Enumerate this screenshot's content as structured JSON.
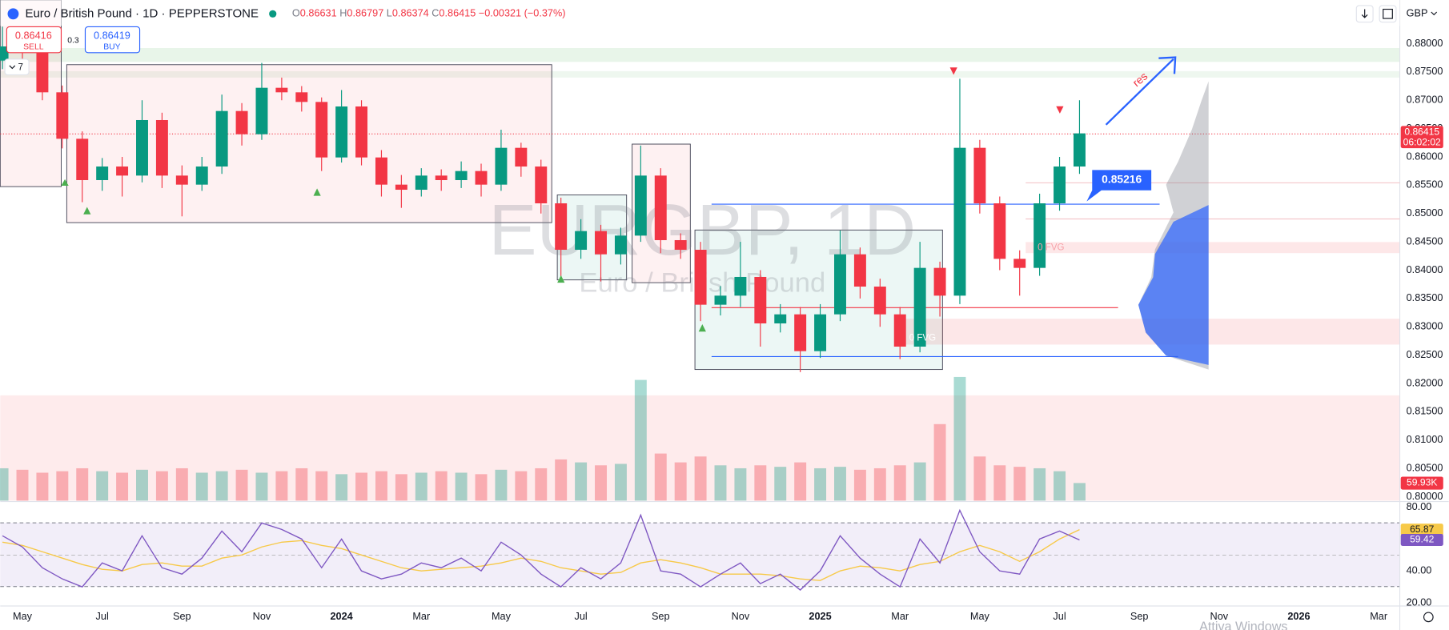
{
  "header": {
    "symbol": "Euro / British Pound · 1D · PEPPERSTONE",
    "ohlc": [
      {
        "label": "O",
        "value": "0.86631"
      },
      {
        "label": "H",
        "value": "0.86797"
      },
      {
        "label": "L",
        "value": "0.86374"
      },
      {
        "label": "C",
        "value": "0.86415"
      }
    ],
    "change": "−0.00321 (−0.37%)",
    "sell_price": "0.86416",
    "sell": "SELL",
    "spread": "0.3",
    "buy_price": "0.86419",
    "buy": "BUY",
    "interval_count": "7",
    "currency": "GBP"
  },
  "watermark": {
    "symbol": "EURGBP, 1D",
    "name": "Euro / British Pound"
  },
  "annotations": {
    "callout": "0.85216",
    "res": "res",
    "fvg_upper": "0 FVG",
    "fvg_lower": "0 FVG",
    "countdown": "06:02:02",
    "os_notice": "Attiva Windows"
  },
  "chart_data": {
    "type": "candlestick",
    "up_color": "#089981",
    "down_color": "#f23645",
    "x": [
      -0.5,
      0,
      0.5,
      1,
      1.5,
      2,
      2.5,
      3,
      3.5,
      4,
      4.5,
      5,
      5.5,
      6,
      6.5,
      7,
      7.5,
      8,
      8.5,
      9,
      9.5,
      10,
      10.5,
      11,
      11.5,
      12,
      12.5,
      13,
      13.5,
      14,
      14.5,
      15,
      15.5,
      16,
      16.5,
      17,
      17.5,
      18,
      18.5,
      19,
      19.5,
      20,
      20.5,
      21,
      21.5,
      22,
      22.5,
      23,
      23.5,
      24,
      24.5,
      25,
      25.5,
      26,
      26.5
    ],
    "open": [
      0.877,
      0.8795,
      0.8787,
      0.8714,
      0.8632,
      0.8559,
      0.8583,
      0.8567,
      0.8665,
      0.8567,
      0.8551,
      0.8583,
      0.8681,
      0.864,
      0.8722,
      0.8714,
      0.8697,
      0.8599,
      0.8689,
      0.8599,
      0.8551,
      0.8542,
      0.8567,
      0.8559,
      0.8575,
      0.8551,
      0.8616,
      0.8583,
      0.8518,
      0.8436,
      0.8469,
      0.8428,
      0.8461,
      0.8567,
      0.8453,
      0.8436,
      0.8339,
      0.8355,
      0.8388,
      0.8306,
      0.8322,
      0.8257,
      0.8322,
      0.8428,
      0.8371,
      0.8322,
      0.8265,
      0.8404,
      0.8355,
      0.8616,
      0.8518,
      0.842,
      0.8404,
      0.8518,
      0.8583
    ],
    "high": [
      0.883,
      0.8812,
      0.88,
      0.8726,
      0.8645,
      0.8598,
      0.86,
      0.87,
      0.8678,
      0.8585,
      0.86,
      0.871,
      0.8695,
      0.8766,
      0.874,
      0.8725,
      0.8705,
      0.8718,
      0.87,
      0.8612,
      0.8568,
      0.858,
      0.8578,
      0.8592,
      0.8588,
      0.8648,
      0.8625,
      0.8595,
      0.8528,
      0.849,
      0.848,
      0.8475,
      0.862,
      0.858,
      0.8465,
      0.845,
      0.8372,
      0.845,
      0.84,
      0.834,
      0.8335,
      0.834,
      0.847,
      0.844,
      0.8385,
      0.8335,
      0.845,
      0.8415,
      0.8738,
      0.863,
      0.853,
      0.8435,
      0.8535,
      0.86,
      0.87
    ],
    "low": [
      0.8755,
      0.877,
      0.87,
      0.8615,
      0.852,
      0.854,
      0.853,
      0.8555,
      0.8545,
      0.8495,
      0.854,
      0.857,
      0.862,
      0.863,
      0.87,
      0.868,
      0.8575,
      0.859,
      0.8585,
      0.853,
      0.851,
      0.853,
      0.854,
      0.8545,
      0.853,
      0.854,
      0.8565,
      0.85,
      0.838,
      0.842,
      0.838,
      0.841,
      0.845,
      0.843,
      0.842,
      0.831,
      0.832,
      0.8335,
      0.8265,
      0.829,
      0.822,
      0.8245,
      0.831,
      0.835,
      0.83,
      0.8243,
      0.8255,
      0.8318,
      0.834,
      0.85,
      0.84,
      0.8355,
      0.839,
      0.8505,
      0.857
    ],
    "close": [
      0.8795,
      0.8787,
      0.8714,
      0.8632,
      0.8559,
      0.8583,
      0.8567,
      0.8665,
      0.8567,
      0.8551,
      0.8583,
      0.8681,
      0.864,
      0.8722,
      0.8714,
      0.8697,
      0.8599,
      0.8689,
      0.8599,
      0.8551,
      0.8542,
      0.8567,
      0.8559,
      0.8575,
      0.8551,
      0.8616,
      0.8583,
      0.8518,
      0.8436,
      0.8469,
      0.8428,
      0.8461,
      0.8567,
      0.8453,
      0.8436,
      0.8339,
      0.8355,
      0.8388,
      0.8306,
      0.8322,
      0.8257,
      0.8322,
      0.8428,
      0.8371,
      0.8322,
      0.8265,
      0.8404,
      0.8355,
      0.8616,
      0.8518,
      0.842,
      0.8404,
      0.8518,
      0.8583,
      0.86415
    ],
    "xlim": [
      -0.556,
      34.46
    ],
    "xticks": [
      {
        "value": 0,
        "label": "May"
      },
      {
        "value": 2,
        "label": "Jul"
      },
      {
        "value": 4,
        "label": "Sep"
      },
      {
        "value": 6,
        "label": "Nov"
      },
      {
        "value": 8,
        "label": "2024"
      },
      {
        "value": 10,
        "label": "Mar"
      },
      {
        "value": 12,
        "label": "May"
      },
      {
        "value": 14,
        "label": "Jul"
      },
      {
        "value": 16,
        "label": "Sep"
      },
      {
        "value": 18,
        "label": "Nov"
      },
      {
        "value": 20,
        "label": "2025"
      },
      {
        "value": 22,
        "label": "Mar"
      },
      {
        "value": 24,
        "label": "May"
      },
      {
        "value": 26,
        "label": "Jul"
      },
      {
        "value": 28,
        "label": "Sep"
      },
      {
        "value": 30,
        "label": "Nov"
      },
      {
        "value": 32,
        "label": "2026"
      },
      {
        "value": 34,
        "label": "Mar"
      }
    ],
    "ylim": [
      0.7993,
      0.8877
    ],
    "yticks": [
      {
        "value": 0.8,
        "label": "0.80000"
      },
      {
        "value": 0.805,
        "label": "0.80500"
      },
      {
        "value": 0.81,
        "label": "0.81000"
      },
      {
        "value": 0.815,
        "label": "0.81500"
      },
      {
        "value": 0.82,
        "label": "0.82000"
      },
      {
        "value": 0.825,
        "label": "0.82500"
      },
      {
        "value": 0.83,
        "label": "0.83000"
      },
      {
        "value": 0.835,
        "label": "0.83500"
      },
      {
        "value": 0.84,
        "label": "0.84000"
      },
      {
        "value": 0.845,
        "label": "0.84500"
      },
      {
        "value": 0.85,
        "label": "0.85000"
      },
      {
        "value": 0.855,
        "label": "0.85500"
      },
      {
        "value": 0.86,
        "label": "0.86000"
      },
      {
        "value": 0.865,
        "label": "0.86500"
      },
      {
        "value": 0.87,
        "label": "0.87000"
      },
      {
        "value": 0.875,
        "label": "0.87500"
      },
      {
        "value": 0.88,
        "label": "0.88000"
      }
    ],
    "grid": false,
    "volume": {
      "values": [
        110,
        105,
        95,
        100,
        110,
        100,
        95,
        105,
        100,
        110,
        95,
        100,
        105,
        95,
        100,
        110,
        100,
        90,
        95,
        100,
        90,
        95,
        100,
        95,
        90,
        105,
        100,
        110,
        140,
        130,
        120,
        125,
        410,
        160,
        130,
        150,
        120,
        110,
        120,
        115,
        130,
        110,
        115,
        105,
        110,
        120,
        130,
        260,
        420,
        150,
        120,
        115,
        110,
        100,
        59.93
      ],
      "last_label": "59.93K",
      "ylim": [
        0,
        1700
      ]
    },
    "rsi": {
      "values": [
        62,
        55,
        42,
        35,
        30,
        45,
        40,
        62,
        42,
        38,
        48,
        65,
        52,
        70,
        66,
        60,
        42,
        60,
        40,
        35,
        38,
        45,
        42,
        48,
        40,
        58,
        50,
        38,
        30,
        42,
        35,
        45,
        75,
        40,
        38,
        30,
        38,
        45,
        32,
        38,
        28,
        40,
        62,
        48,
        38,
        30,
        60,
        45,
        78,
        52,
        40,
        38,
        60,
        65,
        59.42
      ],
      "ma": [
        58,
        56,
        52,
        48,
        44,
        41,
        40,
        44,
        45,
        43,
        43,
        48,
        50,
        55,
        58,
        59,
        56,
        54,
        50,
        46,
        42,
        40,
        41,
        42,
        43,
        45,
        48,
        46,
        42,
        40,
        38,
        39,
        45,
        47,
        45,
        42,
        38,
        38,
        38,
        37,
        35,
        34,
        40,
        43,
        42,
        40,
        44,
        46,
        52,
        56,
        52,
        46,
        52,
        60,
        65.87
      ],
      "color": "#7e57c2",
      "ma_color": "#f7c948",
      "ylim": [
        18,
        82.3
      ],
      "levels": [
        30,
        50,
        70
      ],
      "yticks": [
        {
          "value": 80,
          "label": "80.00"
        },
        {
          "value": 40,
          "label": "40.00"
        },
        {
          "value": 20,
          "label": "20.00"
        }
      ]
    }
  }
}
